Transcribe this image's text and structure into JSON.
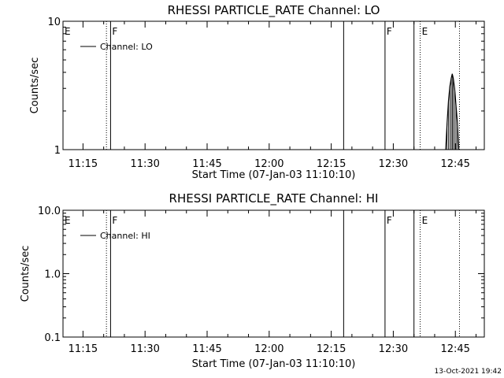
{
  "footer": {
    "timestamp": "13-Oct-2021 19:42"
  },
  "chart_data": [
    {
      "type": "line",
      "title": "RHESSI PARTICLE_RATE Channel: LO",
      "xlabel": "Start Time (07-Jan-03 11:10:10)",
      "ylabel": "Counts/sec",
      "y_scale": "log",
      "ylim": [
        1,
        10
      ],
      "y_ticks": [
        {
          "value": 1,
          "label": "1"
        },
        {
          "value": 10,
          "label": "10"
        }
      ],
      "xlim": [
        "11:10:10",
        "12:52:00"
      ],
      "x_ticks": [
        {
          "value": "11:15",
          "label": "11:15"
        },
        {
          "value": "11:30",
          "label": "11:30"
        },
        {
          "value": "11:45",
          "label": "11:45"
        },
        {
          "value": "12:00",
          "label": "12:00"
        },
        {
          "value": "12:15",
          "label": "12:15"
        },
        {
          "value": "12:30",
          "label": "12:30"
        },
        {
          "value": "12:45",
          "label": "12:45"
        }
      ],
      "legend": {
        "placement": "top-left",
        "entries": [
          "Channel: LO"
        ]
      },
      "series": [
        {
          "name": "Channel: LO",
          "points": [
            [
              "12:42:40",
              1.0
            ],
            [
              "12:43:00",
              1.6
            ],
            [
              "12:43:20",
              2.4
            ],
            [
              "12:43:40",
              3.1
            ],
            [
              "12:44:00",
              3.6
            ],
            [
              "12:44:15",
              3.9
            ],
            [
              "12:44:30",
              3.6
            ],
            [
              "12:44:50",
              3.0
            ],
            [
              "12:45:10",
              2.2
            ],
            [
              "12:45:30",
              1.6
            ],
            [
              "12:45:50",
              1.0
            ]
          ]
        }
      ],
      "markers": [
        {
          "time": "11:10:10",
          "style": "dotted",
          "label": "E"
        },
        {
          "time": "11:20:40",
          "style": "dotted",
          "label": ""
        },
        {
          "time": "11:21:40",
          "style": "solid",
          "label": "F"
        },
        {
          "time": "12:18:00",
          "style": "solid",
          "label": ""
        },
        {
          "time": "12:28:00",
          "style": "solid",
          "label": "F"
        },
        {
          "time": "12:35:00",
          "style": "solid",
          "label": ""
        },
        {
          "time": "12:36:30",
          "style": "dotted",
          "label": "E"
        },
        {
          "time": "12:46:00",
          "style": "dotted",
          "label": ""
        }
      ]
    },
    {
      "type": "line",
      "title": "RHESSI PARTICLE_RATE Channel: HI",
      "xlabel": "Start Time (07-Jan-03 11:10:10)",
      "ylabel": "Counts/sec",
      "y_scale": "log",
      "ylim": [
        0.1,
        10
      ],
      "y_ticks": [
        {
          "value": 0.1,
          "label": "0.1"
        },
        {
          "value": 1,
          "label": "1.0"
        },
        {
          "value": 10,
          "label": "10.0"
        }
      ],
      "xlim": [
        "11:10:10",
        "12:52:00"
      ],
      "x_ticks": [
        {
          "value": "11:15",
          "label": "11:15"
        },
        {
          "value": "11:30",
          "label": "11:30"
        },
        {
          "value": "11:45",
          "label": "11:45"
        },
        {
          "value": "12:00",
          "label": "12:00"
        },
        {
          "value": "12:15",
          "label": "12:15"
        },
        {
          "value": "12:30",
          "label": "12:30"
        },
        {
          "value": "12:45",
          "label": "12:45"
        }
      ],
      "legend": {
        "placement": "top-left",
        "entries": [
          "Channel: HI"
        ]
      },
      "series": [
        {
          "name": "Channel: HI",
          "points": []
        }
      ],
      "markers": [
        {
          "time": "11:10:10",
          "style": "dotted",
          "label": "E"
        },
        {
          "time": "11:20:40",
          "style": "dotted",
          "label": ""
        },
        {
          "time": "11:21:40",
          "style": "solid",
          "label": "F"
        },
        {
          "time": "12:18:00",
          "style": "solid",
          "label": ""
        },
        {
          "time": "12:28:00",
          "style": "solid",
          "label": "F"
        },
        {
          "time": "12:35:00",
          "style": "solid",
          "label": ""
        },
        {
          "time": "12:36:30",
          "style": "dotted",
          "label": "E"
        },
        {
          "time": "12:46:00",
          "style": "dotted",
          "label": ""
        }
      ]
    }
  ]
}
